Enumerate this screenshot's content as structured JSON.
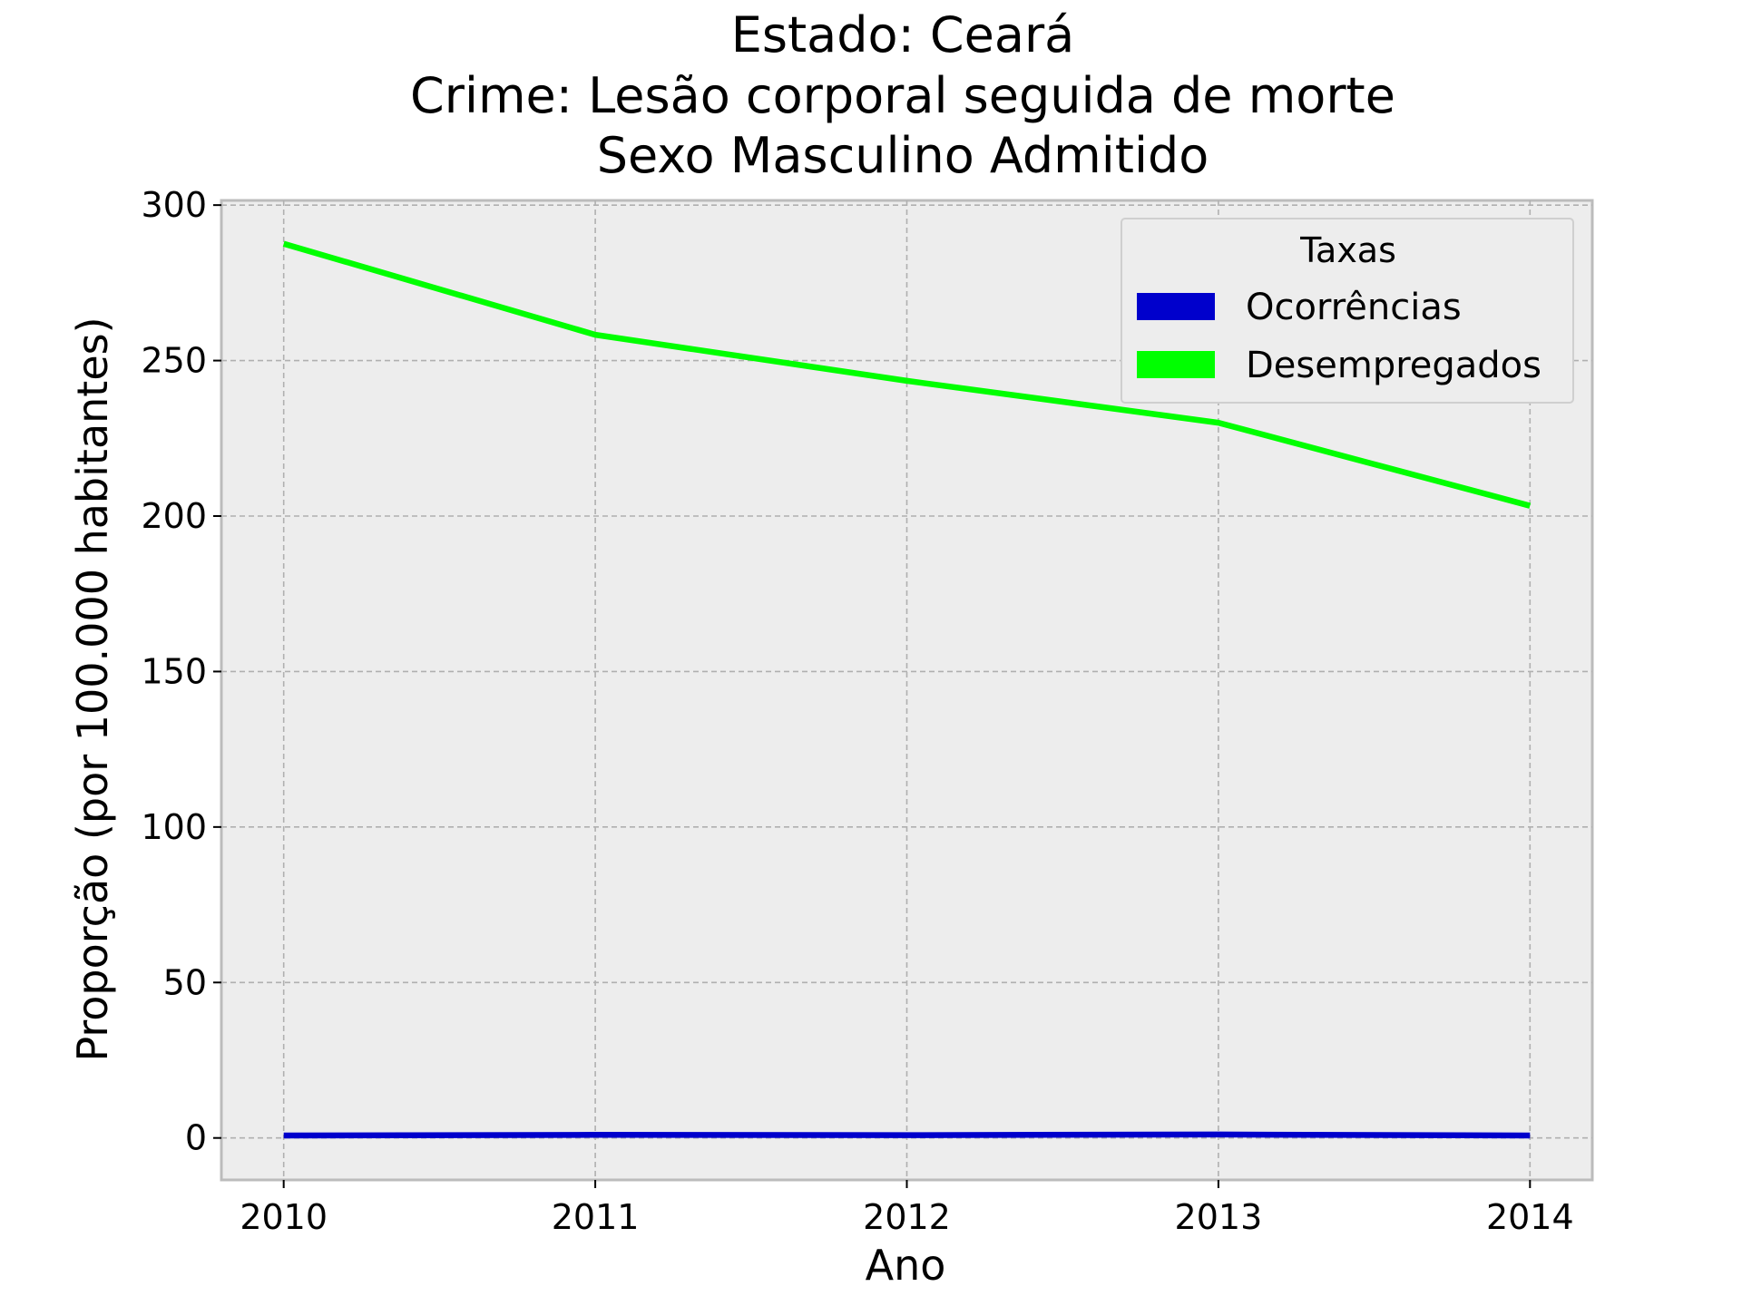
{
  "chart_data": {
    "type": "line",
    "title_lines": [
      "Estado: Ceará",
      "Crime: Lesão corporal seguida de morte",
      "Sexo  Masculino   Admitido"
    ],
    "xlabel": "Ano",
    "ylabel": "Proporção (por 100.000 habitantes)",
    "x": [
      2010,
      2011,
      2012,
      2013,
      2014
    ],
    "xticks": [
      "2010",
      "2011",
      "2012",
      "2013",
      "2014"
    ],
    "xlim": [
      2009.8,
      2014.2
    ],
    "yticks": [
      0,
      50,
      100,
      150,
      200,
      250,
      300
    ],
    "ytick_labels": [
      "0",
      "50",
      "100",
      "150",
      "200",
      "250",
      "300"
    ],
    "ylim": [
      -13.5,
      301.5
    ],
    "grid": true,
    "legend": {
      "title": "Taxas",
      "placement": "top-right"
    },
    "series": [
      {
        "name": "Ocorrências",
        "color": "#0000cc",
        "values": [
          0.8,
          1.0,
          0.9,
          1.1,
          0.8
        ]
      },
      {
        "name": "Desempregados",
        "color": "#00ff00",
        "values": [
          287.6,
          258.3,
          243.5,
          230.0,
          203.3
        ]
      }
    ]
  }
}
